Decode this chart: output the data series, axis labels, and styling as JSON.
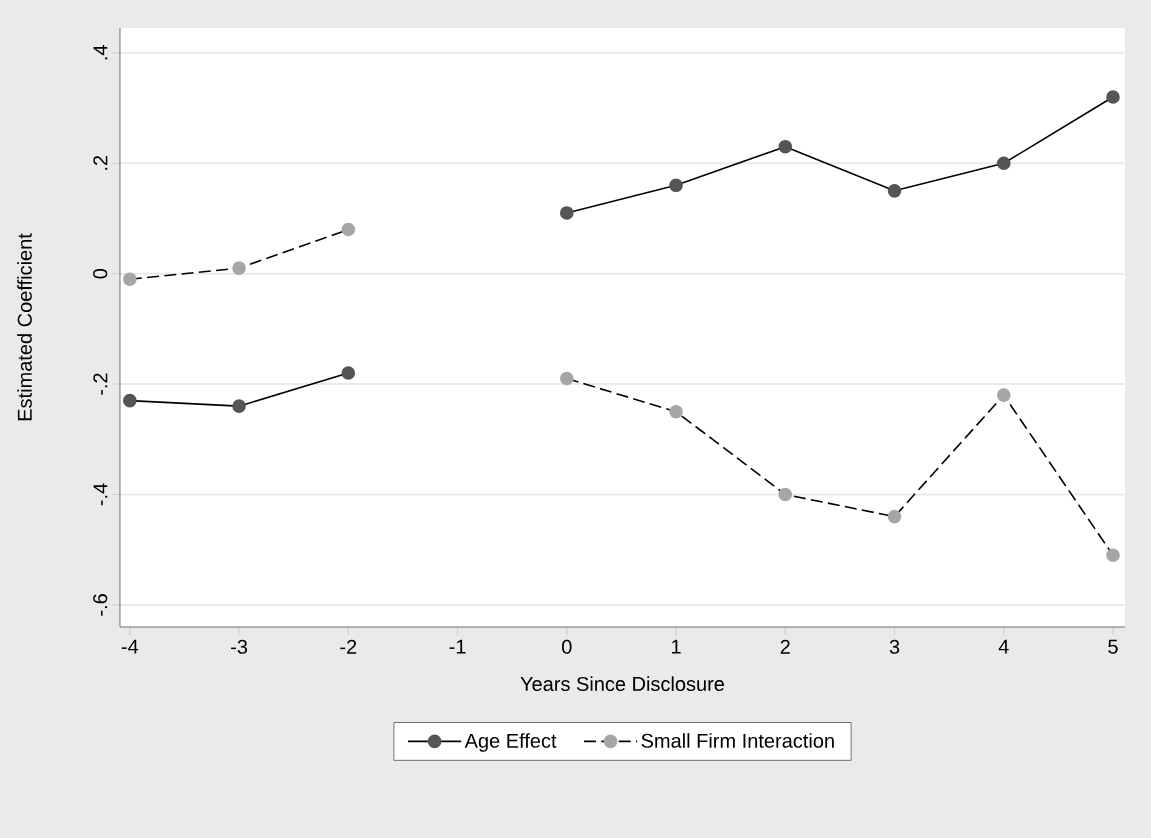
{
  "chart_data": {
    "type": "line",
    "xlabel": "Years Since Disclosure",
    "ylabel": "Estimated Coefficient",
    "x": [
      -4,
      -3,
      -2,
      -1,
      0,
      1,
      2,
      3,
      4,
      5
    ],
    "series": [
      {
        "name": "Age Effect",
        "color": "#555555",
        "line_style": "solid",
        "values": [
          -0.23,
          -0.24,
          -0.18,
          null,
          0.11,
          0.16,
          0.23,
          0.15,
          0.2,
          0.32
        ]
      },
      {
        "name": "Small Firm Interaction",
        "color": "#a6a6a6",
        "line_style": "dashed",
        "values": [
          -0.01,
          0.01,
          0.08,
          null,
          -0.19,
          -0.25,
          -0.4,
          -0.44,
          -0.22,
          -0.51
        ]
      }
    ],
    "xlim": [
      -4.09,
      5.11
    ],
    "ylim": [
      -0.64,
      0.445
    ],
    "xticks": [
      -4,
      -3,
      -2,
      -1,
      0,
      1,
      2,
      3,
      4,
      5
    ],
    "yticks": [
      {
        "value": 0.4,
        "label": ".4"
      },
      {
        "value": 0.2,
        "label": ".2"
      },
      {
        "value": 0,
        "label": "0"
      },
      {
        "value": -0.2,
        "label": "-.2"
      },
      {
        "value": -0.4,
        "label": "-.4"
      },
      {
        "value": -0.6,
        "label": "-.6"
      }
    ],
    "grid": "y",
    "legend": "bottom",
    "marker": "circle"
  }
}
